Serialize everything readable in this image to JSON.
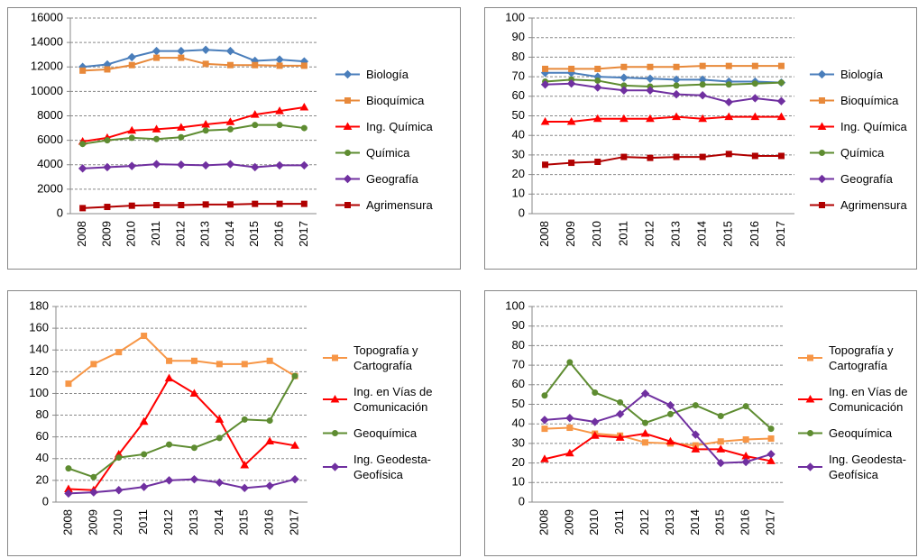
{
  "chart_data": [
    {
      "type": "line",
      "categories": [
        "2008",
        "2009",
        "2010",
        "2011",
        "2012",
        "2013",
        "2014",
        "2015",
        "2016",
        "2017"
      ],
      "ylim": [
        0,
        16000
      ],
      "yticks": [
        0,
        2000,
        4000,
        6000,
        8000,
        10000,
        12000,
        14000,
        16000
      ],
      "grid": true,
      "legend": "right",
      "series": [
        {
          "name": "Biología",
          "color": "#4a7ebb",
          "marker": "diamond",
          "values": [
            12000,
            12200,
            12800,
            13300,
            13300,
            13400,
            13300,
            12500,
            12600,
            12450
          ]
        },
        {
          "name": "Bioquímica",
          "color": "#e8893a",
          "marker": "square",
          "values": [
            11700,
            11800,
            12150,
            12750,
            12750,
            12250,
            12150,
            12150,
            12100,
            12100
          ]
        },
        {
          "name": "Ing. Química",
          "color": "#ff0000",
          "marker": "triangle",
          "values": [
            5900,
            6200,
            6800,
            6900,
            7050,
            7300,
            7500,
            8100,
            8400,
            8700
          ]
        },
        {
          "name": "Química",
          "color": "#5e8c31",
          "marker": "circle",
          "values": [
            5700,
            6000,
            6200,
            6100,
            6250,
            6800,
            6900,
            7250,
            7250,
            7000
          ]
        },
        {
          "name": "Geografía",
          "color": "#7030a0",
          "marker": "diamond",
          "values": [
            3700,
            3800,
            3900,
            4050,
            4000,
            3950,
            4050,
            3800,
            3950,
            3950
          ]
        },
        {
          "name": "Agrimensura",
          "color": "#b00000",
          "marker": "square",
          "values": [
            450,
            550,
            650,
            700,
            700,
            750,
            750,
            800,
            800,
            800
          ]
        }
      ]
    },
    {
      "type": "line",
      "categories": [
        "2008",
        "2009",
        "2010",
        "2011",
        "2012",
        "2013",
        "2014",
        "2015",
        "2016",
        "2017"
      ],
      "ylim": [
        0,
        100
      ],
      "yticks": [
        0,
        10,
        20,
        30,
        40,
        50,
        60,
        70,
        80,
        90,
        100
      ],
      "grid": true,
      "legend": "right",
      "series": [
        {
          "name": "Biología",
          "color": "#4a7ebb",
          "marker": "diamond",
          "values": [
            72,
            72,
            70,
            69.5,
            69,
            68.5,
            68.5,
            67.5,
            67.5,
            67
          ]
        },
        {
          "name": "Bioquímica",
          "color": "#e8893a",
          "marker": "square",
          "values": [
            74,
            74,
            74,
            75,
            75,
            75,
            75.5,
            75.5,
            75.5,
            75.5
          ]
        },
        {
          "name": "Ing. Química",
          "color": "#ff0000",
          "marker": "triangle",
          "values": [
            47,
            47,
            48.5,
            48.5,
            48.5,
            49.5,
            48.5,
            49.5,
            49.5,
            49.5
          ]
        },
        {
          "name": "Química",
          "color": "#5e8c31",
          "marker": "circle",
          "values": [
            67.5,
            68.5,
            68,
            65.5,
            65,
            65.5,
            66,
            66,
            66.5,
            67
          ]
        },
        {
          "name": "Geografía",
          "color": "#7030a0",
          "marker": "diamond",
          "values": [
            66,
            66.5,
            64.5,
            63,
            63,
            61,
            60.5,
            57,
            59,
            57.5
          ]
        },
        {
          "name": "Agrimensura",
          "color": "#b00000",
          "marker": "square",
          "values": [
            25,
            26,
            26.5,
            29,
            28.5,
            29,
            29,
            30.5,
            29.5,
            29.5
          ]
        }
      ]
    },
    {
      "type": "line",
      "categories": [
        "2008",
        "2009",
        "2010",
        "2011",
        "2012",
        "2013",
        "2014",
        "2015",
        "2016",
        "2017"
      ],
      "ylim": [
        0,
        180
      ],
      "yticks": [
        0,
        20,
        40,
        60,
        80,
        100,
        120,
        140,
        160,
        180
      ],
      "grid": true,
      "legend": "right",
      "series": [
        {
          "name": "Topografía y Cartografía",
          "color": "#f79646",
          "marker": "square",
          "values": [
            109,
            127,
            138,
            153,
            130,
            130,
            127,
            127,
            130,
            116
          ]
        },
        {
          "name": "Ing. en Vías de Comunicación",
          "color": "#ff0000",
          "marker": "triangle",
          "values": [
            12,
            11,
            44,
            74,
            114,
            100,
            76,
            34,
            56,
            52
          ]
        },
        {
          "name": "Geoquímica",
          "color": "#5e8c31",
          "marker": "circle",
          "values": [
            31,
            23,
            41,
            44,
            53,
            50,
            59,
            76,
            75,
            116
          ]
        },
        {
          "name": "Ing. Geodesta-Geofísica",
          "color": "#7030a0",
          "marker": "diamond",
          "values": [
            8,
            9,
            11,
            14,
            20,
            21,
            18,
            13,
            15,
            21
          ]
        }
      ]
    },
    {
      "type": "line",
      "categories": [
        "2008",
        "2009",
        "2010",
        "2011",
        "2012",
        "2013",
        "2014",
        "2015",
        "2016",
        "2017"
      ],
      "ylim": [
        0,
        100
      ],
      "yticks": [
        0,
        10,
        20,
        30,
        40,
        50,
        60,
        70,
        80,
        90,
        100
      ],
      "grid": true,
      "legend": "right",
      "series": [
        {
          "name": "Topografía y Cartografía",
          "color": "#f79646",
          "marker": "square",
          "values": [
            37.5,
            38,
            35,
            34,
            30.5,
            30,
            29,
            31,
            32,
            32.5
          ]
        },
        {
          "name": "Ing. en Vías de Comunicación",
          "color": "#ff0000",
          "marker": "triangle",
          "values": [
            22,
            25,
            34,
            33,
            35,
            31,
            27,
            27,
            23.5,
            21
          ]
        },
        {
          "name": "Geoquímica",
          "color": "#5e8c31",
          "marker": "circle",
          "values": [
            54.5,
            71.5,
            56,
            51,
            40.5,
            45,
            49.5,
            44,
            49,
            37.5
          ]
        },
        {
          "name": "Ing. Geodesta-Geofísica",
          "color": "#7030a0",
          "marker": "diamond",
          "values": [
            42,
            43,
            41,
            45,
            55.5,
            49.5,
            34.5,
            20,
            20.5,
            24.5
          ]
        }
      ]
    }
  ]
}
